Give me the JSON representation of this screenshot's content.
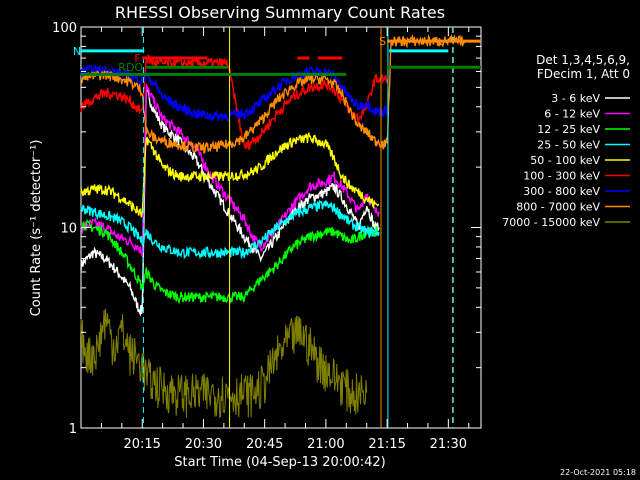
{
  "chart_data": {
    "type": "line",
    "title": "RHESSI Observing Summary Count Rates",
    "xlabel": "Start Time (04-Sep-13 20:00:42)",
    "ylabel": "Count Rate (s⁻¹ detector⁻¹)",
    "yscale": "log",
    "ylim": [
      1,
      100
    ],
    "xlim_minutes_after_2000": [
      0,
      98
    ],
    "x_ticks": [
      "20:15",
      "20:30",
      "20:45",
      "21:00",
      "21:15",
      "21:30"
    ],
    "x_tick_minutes": [
      15,
      30,
      45,
      60,
      75,
      90
    ],
    "y_ticks": [
      "1",
      "10",
      "100"
    ],
    "y_tick_values": [
      1,
      10,
      100
    ],
    "legend_header": [
      "Det 1,3,4,5,6,9,",
      "FDecim 1, Att 0"
    ],
    "legend_placement": "right",
    "series": [
      {
        "name": "3 - 6 keV",
        "color": "#ffffff",
        "x": [
          0,
          3,
          6,
          9,
          12,
          14,
          15,
          16,
          18,
          20,
          24,
          28,
          32,
          36,
          40,
          42,
          44,
          48,
          52,
          56,
          60,
          62,
          64,
          66,
          68,
          70,
          72,
          73
        ],
        "y": [
          6.5,
          7.5,
          7.0,
          6.0,
          5.0,
          4.0,
          3.8,
          48,
          38,
          32,
          27,
          22,
          16,
          12,
          9,
          8,
          7,
          9,
          12,
          14,
          15,
          16,
          14,
          12,
          10,
          13,
          10,
          10
        ]
      },
      {
        "name": "6 - 12 keV",
        "color": "#ff00ff",
        "x": [
          0,
          3,
          6,
          9,
          12,
          14,
          15,
          16,
          18,
          20,
          24,
          28,
          32,
          36,
          40,
          42,
          44,
          48,
          52,
          56,
          60,
          62,
          64,
          66,
          68,
          70,
          72,
          73
        ],
        "y": [
          10,
          10.5,
          10,
          9,
          8.5,
          8,
          7.5,
          50,
          42,
          35,
          30,
          25,
          18,
          14,
          11,
          9,
          8,
          10,
          13,
          16,
          17,
          18,
          16,
          14,
          12,
          15,
          12,
          12
        ]
      },
      {
        "name": "12 - 25 keV",
        "color": "#00ff00",
        "x": [
          0,
          3,
          6,
          9,
          12,
          14,
          15,
          16,
          18,
          20,
          24,
          28,
          32,
          36,
          40,
          42,
          44,
          48,
          52,
          56,
          60,
          62,
          64,
          66,
          68,
          70,
          72,
          73
        ],
        "y": [
          10.5,
          10,
          9.5,
          8,
          6.5,
          5.5,
          5,
          6,
          5.2,
          4.8,
          4.5,
          4.5,
          4.5,
          4.5,
          4.5,
          5,
          5.5,
          6.5,
          8,
          9,
          9.5,
          9.5,
          9,
          8.5,
          9,
          9.5,
          9.5,
          9.5
        ]
      },
      {
        "name": "25 - 50 keV",
        "color": "#00ffff",
        "x": [
          0,
          3,
          6,
          9,
          12,
          14,
          15,
          16,
          18,
          20,
          24,
          28,
          32,
          36,
          40,
          42,
          44,
          48,
          52,
          56,
          60,
          62,
          64,
          66,
          68,
          70,
          72,
          73
        ],
        "y": [
          12.5,
          12,
          11.5,
          11,
          10,
          9,
          8.5,
          9.5,
          8.5,
          8,
          7.5,
          7.5,
          7.5,
          7.5,
          7.5,
          8,
          8.5,
          10,
          11.5,
          12.5,
          13,
          12.5,
          11.5,
          10.5,
          10,
          9.5,
          9.5,
          9.5
        ]
      },
      {
        "name": "50 - 100 keV",
        "color": "#ffff00",
        "x": [
          0,
          3,
          6,
          9,
          12,
          14,
          15,
          16,
          18,
          20,
          24,
          28,
          32,
          36,
          40,
          42,
          44,
          48,
          52,
          56,
          60,
          62,
          64,
          66,
          68,
          70,
          72,
          73
        ],
        "y": [
          15,
          15.5,
          15.5,
          14.5,
          13,
          12,
          11.5,
          28,
          24,
          20,
          18,
          18,
          18,
          18,
          18.5,
          19,
          20,
          24,
          27,
          28,
          26,
          22,
          18,
          16,
          15,
          14,
          13,
          13
        ]
      },
      {
        "name": "100 - 300 keV",
        "color": "#ff0000",
        "x": [
          0,
          3,
          6,
          9,
          12,
          14,
          15,
          16,
          18,
          20,
          24,
          28,
          32,
          36,
          40,
          42,
          44,
          48,
          52,
          56,
          60,
          62,
          64,
          66,
          68,
          70,
          72,
          73,
          74,
          75
        ],
        "y": [
          40,
          44,
          47,
          46,
          43,
          39,
          37,
          70,
          66,
          66,
          66,
          66,
          66,
          66,
          25,
          27,
          29,
          37,
          45,
          50,
          52,
          49,
          43,
          38,
          35,
          40,
          55,
          55,
          55,
          55
        ]
      },
      {
        "name": "300 - 800 keV",
        "color": "#0000ff",
        "x": [
          0,
          3,
          6,
          9,
          12,
          14,
          15,
          16,
          18,
          20,
          24,
          28,
          32,
          36,
          40,
          42,
          44,
          48,
          52,
          56,
          60,
          62,
          64,
          66,
          68,
          70,
          72,
          73,
          74,
          75
        ],
        "y": [
          60,
          61,
          61,
          59,
          57,
          55,
          54,
          58,
          52,
          45,
          40,
          37,
          36,
          36,
          37,
          39,
          42,
          50,
          57,
          60,
          60,
          57,
          50,
          44,
          40,
          42,
          38,
          38,
          38,
          38
        ]
      },
      {
        "name": "800 - 7000 keV",
        "color": "#ff8c00",
        "x": [
          0,
          3,
          6,
          9,
          12,
          14,
          15,
          16,
          18,
          20,
          24,
          28,
          32,
          36,
          40,
          42,
          44,
          48,
          52,
          56,
          60,
          62,
          64,
          66,
          68,
          70,
          72,
          73,
          74,
          75,
          76,
          80,
          85,
          90,
          94
        ],
        "y": [
          55,
          57,
          58,
          56,
          53,
          50,
          48,
          30,
          28,
          27,
          26,
          25,
          25,
          26,
          28,
          31,
          34,
          43,
          51,
          55,
          55,
          52,
          46,
          38,
          32,
          30,
          27,
          27,
          26,
          26,
          85,
          85,
          85,
          85,
          85
        ]
      },
      {
        "name": "7000 - 15000 keV",
        "color": "#808000",
        "x": [
          0,
          2,
          4,
          6,
          8,
          10,
          12,
          14,
          15,
          16,
          18,
          20,
          24,
          28,
          32,
          36,
          40,
          42,
          44,
          46,
          48,
          50,
          52,
          54,
          56,
          58,
          60,
          62,
          64,
          66,
          68,
          70
        ],
        "y": [
          2.9,
          2.3,
          2.5,
          3.6,
          2.6,
          3.1,
          2.4,
          2.2,
          2.1,
          1.8,
          1.7,
          1.6,
          1.5,
          1.5,
          1.5,
          1.5,
          1.5,
          1.5,
          1.6,
          1.9,
          2.3,
          2.6,
          2.9,
          3.0,
          2.6,
          2.2,
          2.0,
          1.8,
          1.7,
          1.5,
          1.5,
          1.5
        ]
      }
    ],
    "annotations": [
      {
        "label": "F",
        "color": "#ff0000",
        "x_range": [
          15,
          31
        ],
        "y": 70
      },
      {
        "label": "",
        "color": "#ff0000",
        "x_range": [
          53,
          56
        ],
        "y": 70
      },
      {
        "label": "",
        "color": "#ff0000",
        "x_range": [
          58,
          64
        ],
        "y": 70
      },
      {
        "label": "N",
        "color": "#00ffff",
        "x_range": [
          0,
          15.5
        ],
        "y": 76
      },
      {
        "label": "",
        "color": "#00ffff",
        "x_range": [
          75.5,
          90
        ],
        "y": 76
      },
      {
        "label": "S",
        "color": "#ff8c00",
        "x_range": [
          75,
          98
        ],
        "y": 85
      },
      {
        "label": "RDO",
        "color": "#008000",
        "x_range": [
          16,
          36
        ],
        "y": 63
      },
      {
        "label": "",
        "color": "#008000",
        "x_range": [
          0,
          65
        ],
        "y": 58
      },
      {
        "label": "",
        "color": "#008000",
        "x_range": [
          75,
          98
        ],
        "y": 63
      }
    ],
    "vertical_markers": [
      {
        "x": 15.3,
        "color": "#00ffff",
        "style": "dashed"
      },
      {
        "x": 36.4,
        "color": "#ffff00",
        "style": "solid"
      },
      {
        "x": 73.5,
        "color": "#ff8c00",
        "style": "solid"
      },
      {
        "x": 75.2,
        "color": "#00ffff",
        "style": "solid"
      },
      {
        "x": 91,
        "color": "#ff8c00",
        "style": "dashed"
      },
      {
        "x": 91.2,
        "color": "#00ffff",
        "style": "dashed"
      }
    ]
  },
  "footer_date": "22-Oct-2021 05:18"
}
